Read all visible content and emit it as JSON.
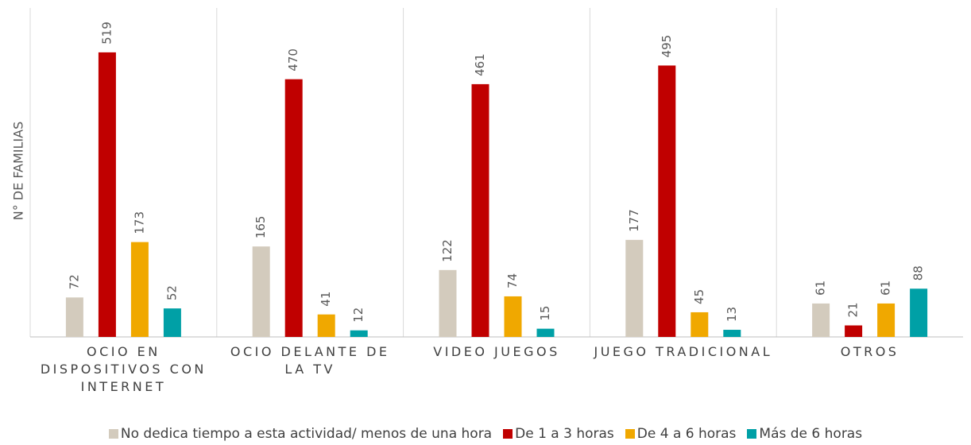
{
  "chart_data": {
    "type": "bar",
    "y_label": "N° DE FAMILIAS",
    "categories": [
      "OCIO EN DISPOSITIVOS CON INTERNET",
      "OCIO DELANTE DE LA TV",
      "VIDEO JUEGOS",
      "JUEGO TRADICIONAL",
      "OTROS"
    ],
    "series": [
      {
        "name": "No dedica tiempo a esta actividad/ menos de una hora",
        "color": "#d3cbbd",
        "values": [
          72,
          165,
          122,
          177,
          61
        ]
      },
      {
        "name": "De 1 a 3 horas",
        "color": "#c00000",
        "values": [
          519,
          470,
          461,
          495,
          21
        ]
      },
      {
        "name": "De 4 a 6 horas",
        "color": "#f0a800",
        "values": [
          173,
          41,
          74,
          45,
          61
        ]
      },
      {
        "name": "Más de 6 horas",
        "color": "#00a0a6",
        "values": [
          52,
          12,
          15,
          13,
          88
        ]
      }
    ],
    "ylim": [
      0,
      600
    ],
    "legend": "bottom"
  }
}
